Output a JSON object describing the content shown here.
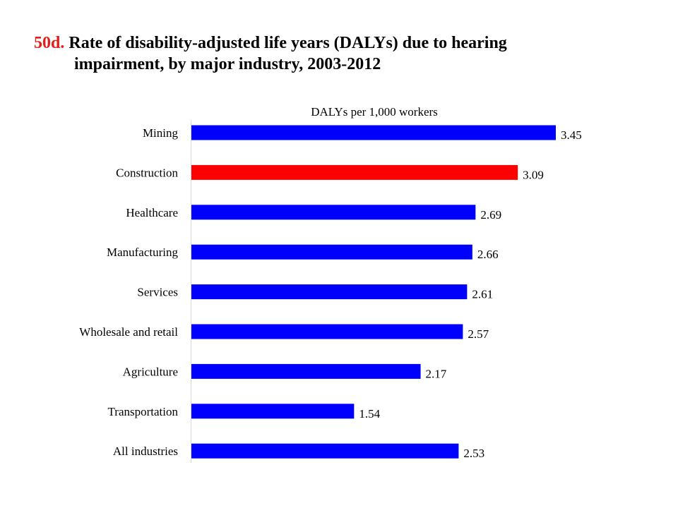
{
  "title": {
    "figure_number": "50d.",
    "line1": "Rate of disability-adjusted life years (DALYs) due to hearing",
    "line2": "impairment, by major industry, 2003-2012"
  },
  "chart_data": {
    "type": "bar",
    "orientation": "horizontal",
    "axis_label": "DALYs  per 1,000 workers",
    "categories": [
      "Mining",
      "Construction",
      "Healthcare",
      "Manufacturing",
      "Services",
      "Wholesale and retail",
      "Agriculture",
      "Transportation",
      "All industries"
    ],
    "values": [
      3.45,
      3.09,
      2.69,
      2.66,
      2.61,
      2.57,
      2.17,
      1.54,
      2.53
    ],
    "value_labels": [
      "3.45",
      "3.09",
      "2.69",
      "2.66",
      "2.61",
      "2.57",
      "2.17",
      "1.54",
      "2.53"
    ],
    "highlight_category": "Construction",
    "xlim": [
      0,
      3.45
    ],
    "grid": false,
    "colors": {
      "bar": "#0000ff",
      "highlight": "#ff0000"
    }
  }
}
